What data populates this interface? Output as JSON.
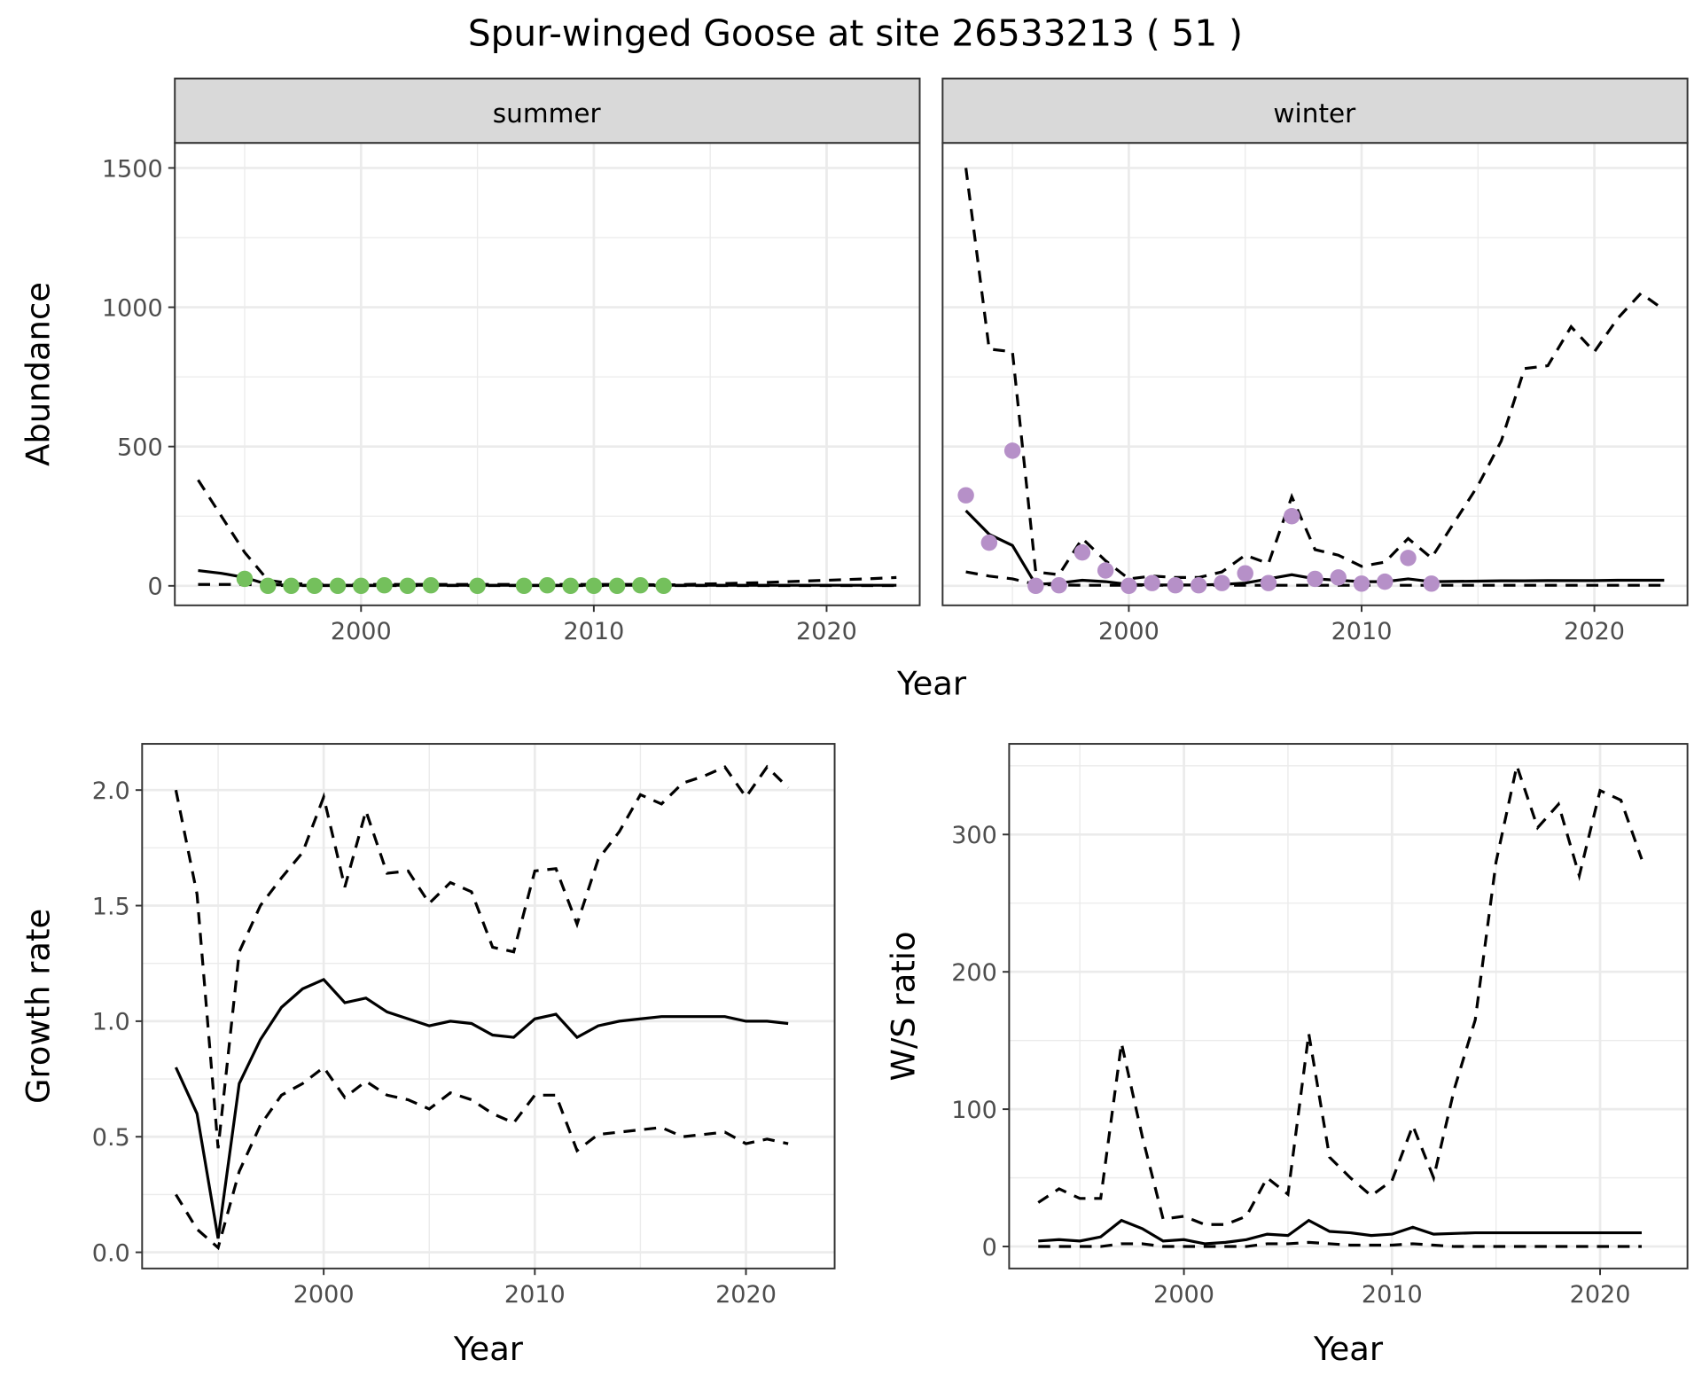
{
  "chart_data": [
    {
      "type": "line",
      "title": "Spur-winged Goose at site 26533213 ( 51 )",
      "facet": "summer",
      "xlabel": "Year",
      "ylabel": "Abundance",
      "xlim": [
        1992,
        2024
      ],
      "ylim": [
        -70,
        1590
      ],
      "xticks": [
        2000,
        2010,
        2020
      ],
      "yticks": [
        0,
        500,
        1000,
        1500
      ],
      "grid": true,
      "point_color": "#74c05c",
      "x": [
        1993,
        1994,
        1995,
        1996,
        1997,
        1998,
        1999,
        2000,
        2001,
        2002,
        2003,
        2004,
        2005,
        2006,
        2007,
        2008,
        2009,
        2010,
        2011,
        2012,
        2013,
        2014,
        2015,
        2016,
        2017,
        2018,
        2019,
        2020,
        2021,
        2022,
        2023
      ],
      "series": [
        {
          "name": "mean",
          "style": "solid",
          "values": [
            55,
            45,
            30,
            5,
            2,
            2,
            2,
            2,
            2,
            2,
            2,
            2,
            2,
            2,
            2,
            2,
            2,
            2,
            2,
            2,
            2,
            2,
            2,
            2,
            2,
            2,
            2,
            2,
            2,
            2,
            2
          ]
        },
        {
          "name": "upper",
          "style": "dashed",
          "values": [
            380,
            250,
            120,
            20,
            8,
            6,
            5,
            5,
            5,
            5,
            5,
            5,
            5,
            5,
            5,
            5,
            5,
            5,
            5,
            5,
            3,
            5,
            7,
            9,
            11,
            14,
            17,
            20,
            23,
            26,
            30
          ]
        },
        {
          "name": "lower",
          "style": "dashed",
          "values": [
            5,
            5,
            5,
            2,
            1,
            1,
            1,
            1,
            1,
            1,
            1,
            1,
            1,
            1,
            1,
            1,
            1,
            1,
            1,
            1,
            1,
            1,
            1,
            1,
            1,
            1,
            1,
            1,
            1,
            1,
            1
          ]
        }
      ],
      "points": {
        "x": [
          1995,
          1996,
          1997,
          1998,
          1999,
          2000,
          2001,
          2002,
          2003,
          2005,
          2007,
          2008,
          2009,
          2010,
          2011,
          2012,
          2013
        ],
        "y": [
          25,
          0,
          0,
          0,
          0,
          0,
          2,
          0,
          2,
          0,
          0,
          2,
          0,
          0,
          0,
          2,
          0
        ]
      }
    },
    {
      "type": "line",
      "facet": "winter",
      "xlabel": "Year",
      "ylabel": "Abundance",
      "xlim": [
        1992,
        2024
      ],
      "ylim": [
        -70,
        1590
      ],
      "xticks": [
        2000,
        2010,
        2020
      ],
      "yticks": [
        0,
        500,
        1000,
        1500
      ],
      "grid": true,
      "point_color": "#b690c8",
      "x": [
        1993,
        1994,
        1995,
        1996,
        1997,
        1998,
        1999,
        2000,
        2001,
        2002,
        2003,
        2004,
        2005,
        2006,
        2007,
        2008,
        2009,
        2010,
        2011,
        2012,
        2013,
        2014,
        2015,
        2016,
        2017,
        2018,
        2019,
        2020,
        2021,
        2022,
        2023
      ],
      "series": [
        {
          "name": "mean",
          "style": "solid",
          "values": [
            270,
            185,
            145,
            5,
            10,
            20,
            15,
            5,
            3,
            3,
            3,
            5,
            10,
            25,
            40,
            25,
            20,
            15,
            15,
            25,
            15,
            16,
            17,
            18,
            18,
            19,
            19,
            19,
            20,
            20,
            20
          ]
        },
        {
          "name": "upper",
          "style": "dashed",
          "values": [
            1500,
            850,
            840,
            50,
            40,
            170,
            90,
            25,
            35,
            30,
            30,
            50,
            110,
            80,
            320,
            130,
            110,
            70,
            85,
            170,
            100,
            230,
            360,
            520,
            780,
            790,
            930,
            840,
            960,
            1050,
            990
          ]
        },
        {
          "name": "lower",
          "style": "dashed",
          "values": [
            50,
            35,
            25,
            5,
            3,
            2,
            2,
            2,
            2,
            2,
            2,
            2,
            2,
            2,
            2,
            2,
            2,
            2,
            2,
            2,
            2,
            2,
            2,
            2,
            2,
            2,
            2,
            2,
            2,
            2,
            2
          ]
        }
      ],
      "points": {
        "x": [
          1993,
          1994,
          1995,
          1996,
          1997,
          1998,
          1999,
          2000,
          2001,
          2002,
          2003,
          2004,
          2005,
          2006,
          2007,
          2008,
          2009,
          2010,
          2011,
          2012,
          2013
        ],
        "y": [
          325,
          155,
          485,
          0,
          2,
          120,
          55,
          0,
          10,
          2,
          2,
          10,
          45,
          10,
          250,
          25,
          30,
          8,
          15,
          100,
          8
        ]
      }
    },
    {
      "type": "line",
      "xlabel": "Year",
      "ylabel": "Growth rate",
      "xlim": [
        1991.4,
        2024.2
      ],
      "ylim": [
        -0.07,
        2.2
      ],
      "xticks": [
        2000,
        2010,
        2020
      ],
      "yticks": [
        0.0,
        0.5,
        1.0,
        1.5,
        2.0
      ],
      "ytick_labels": [
        "0.0",
        "0.5",
        "1.0",
        "1.5",
        "2.0"
      ],
      "grid": true,
      "x": [
        1993,
        1994,
        1995,
        1996,
        1997,
        1998,
        1999,
        2000,
        2001,
        2002,
        2003,
        2004,
        2005,
        2006,
        2007,
        2008,
        2009,
        2010,
        2011,
        2012,
        2013,
        2014,
        2015,
        2016,
        2017,
        2018,
        2019,
        2020,
        2021,
        2022
      ],
      "series": [
        {
          "name": "mean",
          "style": "solid",
          "values": [
            0.8,
            0.6,
            0.06,
            0.73,
            0.92,
            1.06,
            1.14,
            1.18,
            1.08,
            1.1,
            1.04,
            1.01,
            0.98,
            1.0,
            0.99,
            0.94,
            0.93,
            1.01,
            1.03,
            0.93,
            0.98,
            1.0,
            1.01,
            1.02,
            1.02,
            1.02,
            1.02,
            1.0,
            1.0,
            0.99
          ]
        },
        {
          "name": "upper",
          "style": "dashed",
          "values": [
            2.0,
            1.55,
            0.45,
            1.3,
            1.5,
            1.62,
            1.73,
            1.97,
            1.58,
            1.91,
            1.64,
            1.65,
            1.51,
            1.6,
            1.56,
            1.32,
            1.3,
            1.65,
            1.66,
            1.42,
            1.7,
            1.82,
            1.98,
            1.94,
            2.03,
            2.06,
            2.1,
            1.97,
            2.1,
            2.01
          ]
        },
        {
          "name": "lower",
          "style": "dashed",
          "values": [
            0.25,
            0.1,
            0.02,
            0.35,
            0.55,
            0.68,
            0.73,
            0.8,
            0.67,
            0.74,
            0.68,
            0.66,
            0.62,
            0.69,
            0.66,
            0.6,
            0.56,
            0.68,
            0.68,
            0.44,
            0.51,
            0.52,
            0.53,
            0.54,
            0.5,
            0.51,
            0.52,
            0.47,
            0.49,
            0.47
          ]
        }
      ]
    },
    {
      "type": "line",
      "xlabel": "Year",
      "ylabel": "W/S ratio",
      "xlim": [
        1991.6,
        2024.2
      ],
      "ylim": [
        -16,
        366
      ],
      "xticks": [
        2000,
        2010,
        2020
      ],
      "yticks": [
        0,
        100,
        200,
        300
      ],
      "grid": true,
      "x": [
        1993,
        1994,
        1995,
        1996,
        1997,
        1998,
        1999,
        2000,
        2001,
        2002,
        2003,
        2004,
        2005,
        2006,
        2007,
        2008,
        2009,
        2010,
        2011,
        2012,
        2013,
        2014,
        2015,
        2016,
        2017,
        2018,
        2019,
        2020,
        2021,
        2022
      ],
      "series": [
        {
          "name": "mean",
          "style": "solid",
          "values": [
            4,
            5,
            4,
            7,
            19,
            13,
            4,
            5,
            2,
            3,
            5,
            9,
            8,
            19,
            11,
            10,
            8,
            9,
            14,
            9,
            9.5,
            10,
            10,
            10,
            10,
            10,
            10,
            10,
            10,
            10
          ]
        },
        {
          "name": "upper",
          "style": "dashed",
          "values": [
            32,
            42,
            35,
            35,
            148,
            80,
            20,
            22,
            16,
            16,
            22,
            50,
            38,
            155,
            65,
            50,
            37,
            48,
            88,
            50,
            115,
            165,
            280,
            350,
            305,
            322,
            270,
            332,
            325,
            282
          ]
        },
        {
          "name": "lower",
          "style": "dashed",
          "values": [
            0,
            0,
            0,
            0,
            2,
            2,
            0,
            0,
            0,
            0,
            0,
            2,
            2,
            3,
            2,
            1,
            1,
            1,
            2,
            1,
            0,
            0,
            0,
            0,
            0,
            0,
            0,
            0,
            0,
            0
          ]
        }
      ]
    }
  ]
}
